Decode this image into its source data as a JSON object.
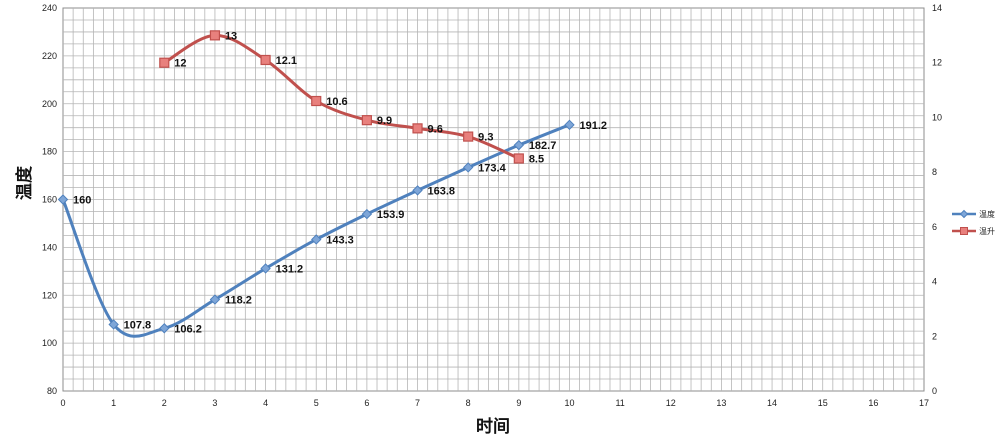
{
  "chart_data": {
    "type": "line",
    "title": "",
    "xlabel": "时间",
    "ylabel": "温度",
    "xlim": [
      0,
      17
    ],
    "x_ticks": [
      "0",
      "1",
      "2",
      "3",
      "4",
      "5",
      "6",
      "7",
      "8",
      "9",
      "10",
      "11",
      "12",
      "13",
      "14",
      "15",
      "16",
      "17"
    ],
    "ylim": [
      80,
      240
    ],
    "y_ticks": [
      "80",
      "100",
      "120",
      "140",
      "160",
      "180",
      "200",
      "220",
      "240"
    ],
    "y2lim": [
      0,
      14
    ],
    "y2_ticks": [
      "0",
      "2",
      "4",
      "6",
      "8",
      "10",
      "12",
      "14"
    ],
    "grid": true,
    "legend_position": "right",
    "series": [
      {
        "name": "温度",
        "axis": "left",
        "color": "#4f81bd",
        "marker": "diamond",
        "x": [
          0,
          1,
          2,
          3,
          4,
          5,
          6,
          7,
          8,
          9,
          10
        ],
        "values": [
          160,
          107.8,
          106.2,
          118.2,
          131.2,
          143.3,
          153.9,
          163.8,
          173.4,
          182.7,
          191.2
        ],
        "labels": [
          "160",
          "107.8",
          "106.2",
          "118.2",
          "131.2",
          "143.3",
          "153.9",
          "163.8",
          "173.4",
          "182.7",
          "191.2"
        ]
      },
      {
        "name": "温升",
        "axis": "right",
        "color": "#c0504d",
        "marker": "square",
        "x": [
          2,
          3,
          4,
          5,
          6,
          7,
          8,
          9
        ],
        "values": [
          12,
          13,
          12.1,
          10.6,
          9.9,
          9.6,
          9.3,
          8.5
        ],
        "labels": [
          "12",
          "13",
          "12.1",
          "10.6",
          "9.9",
          "9.6",
          "9.3",
          "8.5"
        ]
      }
    ]
  }
}
